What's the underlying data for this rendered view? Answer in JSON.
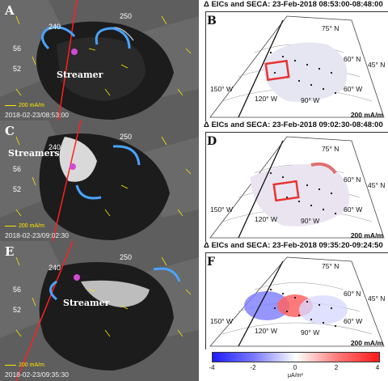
{
  "panels_left": [
    {
      "letter": "A",
      "stamp": "2018-02-23/08:53:00",
      "ref_label": "200 mA/m",
      "callout": "Streamer",
      "lat_labels": [
        "56",
        "52"
      ],
      "lon_labels": [
        "250",
        "240"
      ]
    },
    {
      "letter": "C",
      "stamp": "2018-02-23/09:02:30",
      "ref_label": "200 mA/m",
      "callout": "Streamers",
      "lat_labels": [
        "56",
        "52"
      ],
      "lon_labels": [
        "250",
        "240"
      ]
    },
    {
      "letter": "E",
      "stamp": "2018-02-23/09:35:30",
      "ref_label": "200 mA/m",
      "callout": "Streamer",
      "lat_labels": [
        "56",
        "52"
      ],
      "lon_labels": [
        "250",
        "240"
      ]
    }
  ],
  "panels_right": [
    {
      "letter": "B",
      "title": "Δ EICs and SECA: 23-Feb-2018 08:53:00-08:48:00",
      "lat_labels": [
        "75° N",
        "60° N",
        "45° N"
      ],
      "lon_labels": [
        "150° W",
        "120° W",
        "90° W",
        "60° W"
      ],
      "scale": "200 mA/m"
    },
    {
      "letter": "D",
      "title": "Δ EICs and SECA: 23-Feb-2018 09:02:30-08:48:00",
      "lat_labels": [
        "75° N",
        "60° N",
        "45° N"
      ],
      "lon_labels": [
        "150° W",
        "120° W",
        "90° W",
        "60° W"
      ],
      "scale": "200 mA/m"
    },
    {
      "letter": "F",
      "title": "Δ EICs and SECA: 23-Feb-2018 09:35:20-09:24:50",
      "lat_labels": [
        "75° N",
        "60° N",
        "45° N"
      ],
      "lon_labels": [
        "150° W",
        "120° W",
        "90° W",
        "60° W"
      ],
      "scale": "200 mA/m"
    }
  ],
  "colorbar": {
    "ticks": [
      "-4",
      "-2",
      "0",
      "2",
      "4"
    ],
    "unit": "μA/m²",
    "colors": {
      "neg": "#1c1cff",
      "zero": "#ffffff",
      "pos": "#ff1a1a"
    }
  }
}
